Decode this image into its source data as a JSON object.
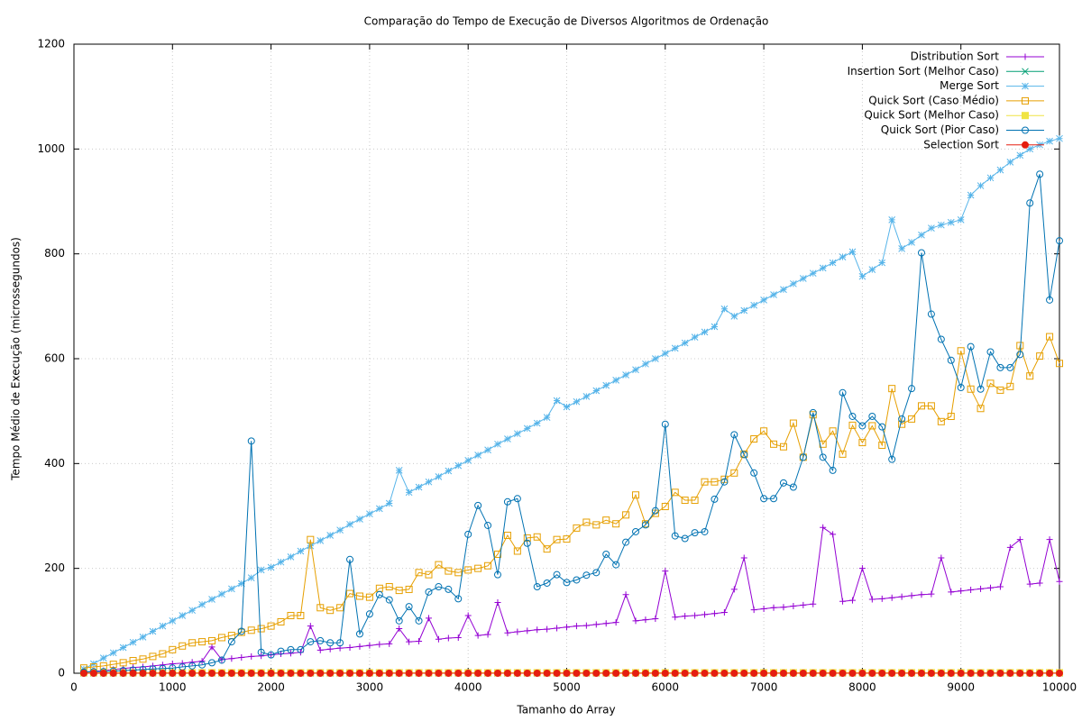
{
  "chart_data": {
    "type": "line",
    "title": "Comparação do Tempo de Execução de Diversos Algoritmos de Ordenação",
    "xlabel": "Tamanho do Array",
    "ylabel": "Tempo Médio de Execução (microssegundos)",
    "xlim": [
      0,
      10000
    ],
    "ylim": [
      0,
      1200
    ],
    "xticks": [
      0,
      1000,
      2000,
      3000,
      4000,
      5000,
      6000,
      7000,
      8000,
      9000,
      10000
    ],
    "yticks": [
      0,
      200,
      400,
      600,
      800,
      1000,
      1200
    ],
    "grid": true,
    "legend": "top-right",
    "x": [
      100,
      200,
      300,
      400,
      500,
      600,
      700,
      800,
      900,
      1000,
      1100,
      1200,
      1300,
      1400,
      1500,
      1600,
      1700,
      1800,
      1900,
      2000,
      2100,
      2200,
      2300,
      2400,
      2500,
      2600,
      2700,
      2800,
      2900,
      3000,
      3100,
      3200,
      3300,
      3400,
      3500,
      3600,
      3700,
      3800,
      3900,
      4000,
      4100,
      4200,
      4300,
      4400,
      4500,
      4600,
      4700,
      4800,
      4900,
      5000,
      5100,
      5200,
      5300,
      5400,
      5500,
      5600,
      5700,
      5800,
      5900,
      6000,
      6100,
      6200,
      6300,
      6400,
      6500,
      6600,
      6700,
      6800,
      6900,
      7000,
      7100,
      7200,
      7300,
      7400,
      7500,
      7600,
      7700,
      7800,
      7900,
      8000,
      8100,
      8200,
      8300,
      8400,
      8500,
      8600,
      8700,
      8800,
      8900,
      9000,
      9100,
      9200,
      9300,
      9400,
      9500,
      9600,
      9700,
      9800,
      9900,
      10000
    ],
    "series": [
      {
        "name": "Distribution Sort",
        "color": "#9400d3",
        "marker": "plus",
        "values": [
          2,
          4,
          5,
          7,
          9,
          11,
          12,
          14,
          16,
          18,
          19,
          21,
          23,
          50,
          26,
          28,
          30,
          32,
          33,
          35,
          37,
          38,
          40,
          90,
          44,
          46,
          48,
          49,
          51,
          53,
          55,
          56,
          85,
          60,
          61,
          105,
          65,
          67,
          68,
          110,
          72,
          74,
          135,
          77,
          79,
          81,
          83,
          84,
          86,
          88,
          90,
          91,
          93,
          95,
          97,
          150,
          100,
          102,
          104,
          195,
          107,
          109,
          110,
          112,
          114,
          116,
          160,
          220,
          121,
          123,
          125,
          126,
          128,
          130,
          132,
          278,
          265,
          137,
          139,
          200,
          141,
          142,
          144,
          146,
          148,
          150,
          151,
          220,
          155,
          157,
          159,
          161,
          163,
          165,
          240,
          255,
          170,
          172,
          255,
          175
        ]
      },
      {
        "name": "Insertion Sort (Melhor Caso)",
        "color": "#009e73",
        "marker": "cross",
        "values": [
          0,
          0,
          0,
          0,
          0,
          0,
          0,
          0,
          0,
          0,
          0,
          0,
          0,
          0,
          0,
          0,
          0,
          0,
          0,
          0,
          0,
          0,
          0,
          0,
          0,
          0,
          0,
          0,
          0,
          0,
          0,
          0,
          0,
          0,
          0,
          0,
          0,
          0,
          0,
          0,
          0,
          0,
          0,
          0,
          0,
          0,
          0,
          0,
          0,
          0,
          0,
          0,
          0,
          0,
          0,
          0,
          0,
          0,
          0,
          0,
          0,
          0,
          0,
          0,
          0,
          0,
          0,
          0,
          0,
          0,
          0,
          0,
          0,
          0,
          0,
          0,
          0,
          0,
          0,
          0,
          0,
          0,
          0,
          0,
          0,
          0,
          0,
          0,
          0,
          0,
          0,
          0,
          0,
          0,
          0,
          0,
          0,
          0,
          0,
          0
        ]
      },
      {
        "name": "Merge Sort",
        "color": "#56b4e9",
        "marker": "star",
        "values": [
          8,
          18,
          29,
          39,
          49,
          59,
          69,
          80,
          90,
          100,
          110,
          120,
          131,
          141,
          151,
          161,
          171,
          182,
          197,
          202,
          212,
          222,
          233,
          243,
          253,
          263,
          273,
          284,
          294,
          304,
          314,
          324,
          387,
          345,
          355,
          365,
          375,
          386,
          396,
          406,
          416,
          426,
          437,
          447,
          457,
          467,
          477,
          488,
          520,
          508,
          518,
          528,
          539,
          549,
          559,
          569,
          579,
          590,
          600,
          610,
          620,
          630,
          641,
          651,
          661,
          695,
          681,
          692,
          702,
          712,
          722,
          732,
          743,
          753,
          763,
          773,
          783,
          794,
          804,
          757,
          770,
          783,
          865,
          810,
          822,
          836,
          849,
          855,
          860,
          865,
          912,
          930,
          945,
          960,
          975,
          988,
          1000,
          1008,
          1015,
          1020
        ]
      },
      {
        "name": "Quick Sort (Caso Médio)",
        "color": "#e69f00",
        "marker": "square-open",
        "values": [
          10,
          12,
          14,
          17,
          20,
          24,
          27,
          32,
          37,
          45,
          52,
          58,
          60,
          62,
          68,
          72,
          78,
          82,
          85,
          90,
          98,
          110,
          110,
          255,
          125,
          120,
          125,
          152,
          147,
          145,
          162,
          165,
          158,
          160,
          192,
          188,
          207,
          195,
          192,
          197,
          200,
          205,
          227,
          263,
          233,
          258,
          260,
          237,
          255,
          256,
          277,
          288,
          283,
          292,
          285,
          302,
          340,
          285,
          305,
          318,
          345,
          330,
          330,
          365,
          365,
          370,
          382,
          418,
          447,
          462,
          437,
          432,
          477,
          412,
          493,
          437,
          462,
          418,
          473,
          440,
          472,
          435,
          543,
          475,
          485,
          510,
          510,
          480,
          490,
          615,
          542,
          505,
          553,
          540,
          547,
          625,
          567,
          605,
          642,
          591
        ]
      },
      {
        "name": "Quick Sort (Melhor Caso)",
        "color": "#f0e442",
        "marker": "square-filled",
        "values": [
          1,
          1,
          1,
          1,
          1,
          1,
          1,
          1,
          1,
          1,
          1,
          1,
          1,
          1,
          1,
          1,
          1,
          1,
          1,
          1,
          1,
          1,
          1,
          1,
          1,
          1,
          1,
          1,
          1,
          1,
          1,
          1,
          1,
          1,
          1,
          1,
          1,
          1,
          1,
          1,
          1,
          1,
          1,
          1,
          1,
          1,
          1,
          1,
          1,
          1,
          1,
          1,
          1,
          1,
          1,
          1,
          1,
          1,
          1,
          1,
          1,
          1,
          1,
          1,
          1,
          1,
          1,
          1,
          1,
          1,
          1,
          1,
          1,
          1,
          1,
          1,
          1,
          1,
          1,
          1,
          1,
          1,
          1,
          1,
          1,
          1,
          1,
          1,
          1,
          1,
          1,
          1,
          1,
          1,
          1,
          1,
          1,
          1,
          1,
          1
        ]
      },
      {
        "name": "Quick Sort (Pior Caso)",
        "color": "#0072b2",
        "marker": "circle-open",
        "values": [
          2,
          3,
          3,
          4,
          5,
          6,
          7,
          8,
          9,
          10,
          12,
          14,
          16,
          20,
          25,
          60,
          80,
          443,
          40,
          35,
          42,
          45,
          45,
          60,
          62,
          58,
          58,
          217,
          75,
          113,
          150,
          140,
          100,
          127,
          100,
          155,
          165,
          160,
          142,
          265,
          320,
          282,
          188,
          327,
          333,
          248,
          165,
          172,
          188,
          173,
          178,
          187,
          192,
          227,
          207,
          250,
          270,
          283,
          310,
          475,
          262,
          257,
          268,
          270,
          332,
          365,
          455,
          417,
          382,
          333,
          333,
          363,
          355,
          412,
          497,
          412,
          387,
          535,
          490,
          472,
          490,
          470,
          408,
          485,
          543,
          802,
          685,
          637,
          597,
          545,
          623,
          542,
          613,
          583,
          583,
          608,
          897,
          952,
          712,
          825
        ]
      },
      {
        "name": "Selection Sort",
        "color": "#e51e10",
        "marker": "circle-filled",
        "values": [
          0,
          0,
          0,
          0,
          0,
          0,
          0,
          0,
          0,
          0,
          0,
          0,
          0,
          0,
          0,
          0,
          0,
          0,
          0,
          0,
          0,
          0,
          0,
          0,
          0,
          0,
          0,
          0,
          0,
          0,
          0,
          0,
          0,
          0,
          0,
          0,
          0,
          0,
          0,
          0,
          0,
          0,
          0,
          0,
          0,
          0,
          0,
          0,
          0,
          0,
          0,
          0,
          0,
          0,
          0,
          0,
          0,
          0,
          0,
          0,
          0,
          0,
          0,
          0,
          0,
          0,
          0,
          0,
          0,
          0,
          0,
          0,
          0,
          0,
          0,
          0,
          0,
          0,
          0,
          0,
          0,
          0,
          0,
          0,
          0,
          0,
          0,
          0,
          0,
          0,
          0,
          0,
          0,
          0,
          0,
          0,
          0,
          0,
          0,
          0
        ]
      }
    ]
  }
}
